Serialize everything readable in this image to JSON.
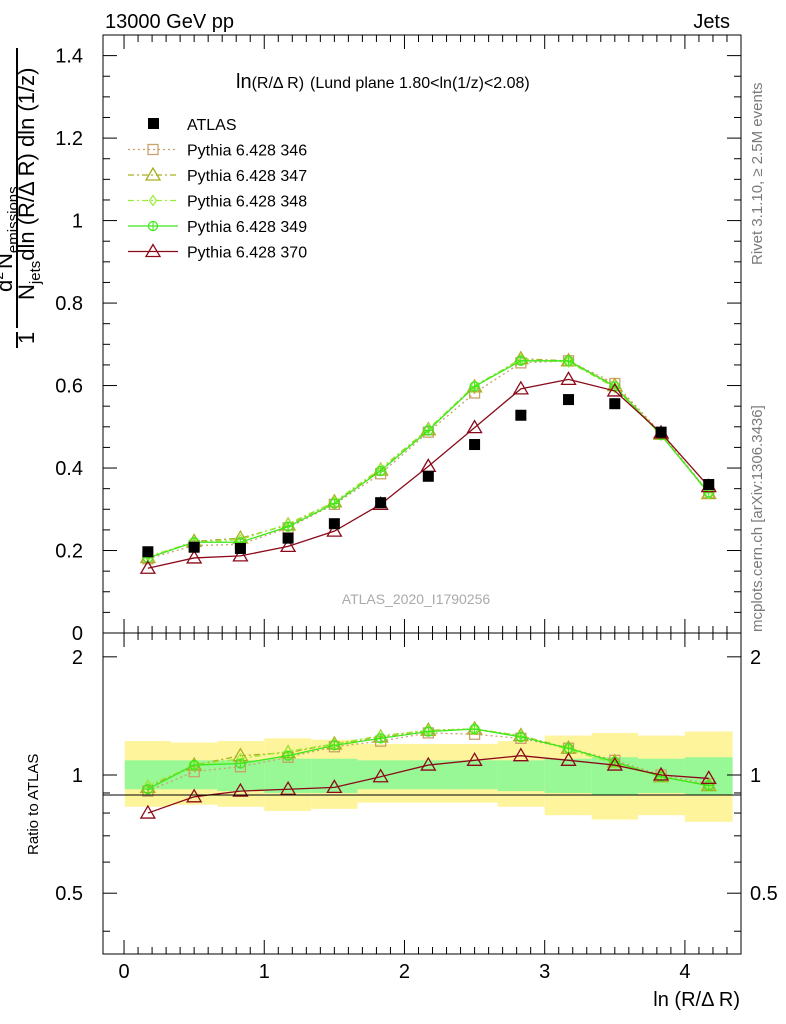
{
  "header": {
    "left": "13000 GeV pp",
    "right": "Jets"
  },
  "side_labels": {
    "rivet": "Rivet 3.1.10, ≥ 2.5M events",
    "mcplots": "mcplots.cern.ch [arXiv:1306.3436]"
  },
  "main_panel": {
    "title_main": "ln",
    "title_small": "(R/Δ R)",
    "title_rest": "(Lund plane 1.80<ln(1/z)<2.08)",
    "watermark": "ATLAS_2020_I1790256",
    "ylabel": {
      "one": "1",
      "N_jets": "N",
      "jets_sub": "jets",
      "dln": "dln (R/Δ R) dln (1/z)",
      "num_d": "d",
      "num_sup": "2",
      "num_N": "N",
      "num_sub": "emissions"
    }
  },
  "ratio_panel": {
    "ylabel": "Ratio to ATLAS"
  },
  "xaxis_label": "ln (R/Δ R)",
  "chart_data": {
    "type": "line",
    "x": [
      0.17,
      0.5,
      0.83,
      1.17,
      1.5,
      1.83,
      2.17,
      2.5,
      2.83,
      3.17,
      3.5,
      3.83,
      4.17
    ],
    "xlim": [
      -0.15,
      4.4
    ],
    "xticks": [
      "0",
      "1",
      "2",
      "3",
      "4"
    ],
    "main": {
      "ylim": [
        0,
        1.45
      ],
      "yticks": [
        "0",
        "0.2",
        "0.4",
        "0.6",
        "0.8",
        "1",
        "1.2",
        "1.4"
      ],
      "data": {
        "name": "ATLAS",
        "values": [
          0.197,
          0.208,
          0.205,
          0.23,
          0.265,
          0.316,
          0.38,
          0.457,
          0.528,
          0.566,
          0.556,
          0.487,
          0.36
        ]
      },
      "series": [
        {
          "name": "Pythia 6.428 346",
          "color": "#c8a16b",
          "values": [
            0.18,
            0.212,
            0.215,
            0.255,
            0.312,
            0.386,
            0.487,
            0.582,
            0.655,
            0.66,
            0.605,
            0.485,
            0.34
          ]
        },
        {
          "name": "Pythia 6.428 347",
          "color": "#a8b022",
          "values": [
            0.183,
            0.222,
            0.23,
            0.262,
            0.318,
            0.395,
            0.493,
            0.597,
            0.665,
            0.66,
            0.6,
            0.482,
            0.338
          ]
        },
        {
          "name": "Pythia 6.428 348",
          "color": "#9aee3a",
          "values": [
            0.186,
            0.22,
            0.226,
            0.265,
            0.318,
            0.399,
            0.495,
            0.6,
            0.663,
            0.657,
            0.595,
            0.48,
            0.338
          ]
        },
        {
          "name": "Pythia 6.428 349",
          "color": "#3ee81a",
          "values": [
            0.182,
            0.22,
            0.22,
            0.258,
            0.314,
            0.393,
            0.491,
            0.598,
            0.66,
            0.66,
            0.598,
            0.48,
            0.34
          ]
        },
        {
          "name": "Pythia 6.428 370",
          "color": "#8b0a1a",
          "values": [
            0.157,
            0.182,
            0.187,
            0.21,
            0.247,
            0.312,
            0.404,
            0.498,
            0.592,
            0.615,
            0.587,
            0.485,
            0.355
          ]
        }
      ]
    },
    "ratio": {
      "ylim": [
        0.35,
        2.3
      ],
      "yticks": [
        "0.5",
        "1",
        "2"
      ],
      "band_inner": [
        [
          0.92,
          1.09
        ],
        [
          0.92,
          1.09
        ],
        [
          0.91,
          1.09
        ],
        [
          0.9,
          1.1
        ],
        [
          0.9,
          1.1
        ],
        [
          0.92,
          1.09
        ],
        [
          0.92,
          1.09
        ],
        [
          0.92,
          1.09
        ],
        [
          0.91,
          1.09
        ],
        [
          0.9,
          1.1
        ],
        [
          0.89,
          1.11
        ],
        [
          0.9,
          1.1
        ],
        [
          0.89,
          1.11
        ]
      ],
      "band_outer": [
        [
          0.83,
          1.22
        ],
        [
          0.84,
          1.21
        ],
        [
          0.83,
          1.22
        ],
        [
          0.81,
          1.24
        ],
        [
          0.82,
          1.23
        ],
        [
          0.85,
          1.2
        ],
        [
          0.85,
          1.2
        ],
        [
          0.85,
          1.2
        ],
        [
          0.83,
          1.22
        ],
        [
          0.79,
          1.26
        ],
        [
          0.77,
          1.28
        ],
        [
          0.79,
          1.26
        ],
        [
          0.76,
          1.29
        ]
      ],
      "series": [
        {
          "name": "Pythia 6.428 346",
          "values": [
            0.91,
            1.02,
            1.05,
            1.11,
            1.18,
            1.22,
            1.28,
            1.27,
            1.24,
            1.17,
            1.09,
            1.0,
            0.95
          ]
        },
        {
          "name": "Pythia 6.428 347",
          "values": [
            0.93,
            1.06,
            1.12,
            1.14,
            1.2,
            1.25,
            1.3,
            1.31,
            1.26,
            1.17,
            1.08,
            0.99,
            0.94
          ]
        },
        {
          "name": "Pythia 6.428 348",
          "values": [
            0.94,
            1.06,
            1.1,
            1.15,
            1.2,
            1.26,
            1.3,
            1.31,
            1.26,
            1.16,
            1.07,
            0.99,
            0.94
          ]
        },
        {
          "name": "Pythia 6.428 349",
          "values": [
            0.92,
            1.06,
            1.07,
            1.12,
            1.19,
            1.24,
            1.29,
            1.31,
            1.25,
            1.17,
            1.08,
            0.99,
            0.94
          ]
        },
        {
          "name": "Pythia 6.428 370",
          "values": [
            0.8,
            0.88,
            0.91,
            0.92,
            0.93,
            0.99,
            1.06,
            1.09,
            1.12,
            1.09,
            1.06,
            1.0,
            0.98
          ]
        }
      ]
    }
  }
}
